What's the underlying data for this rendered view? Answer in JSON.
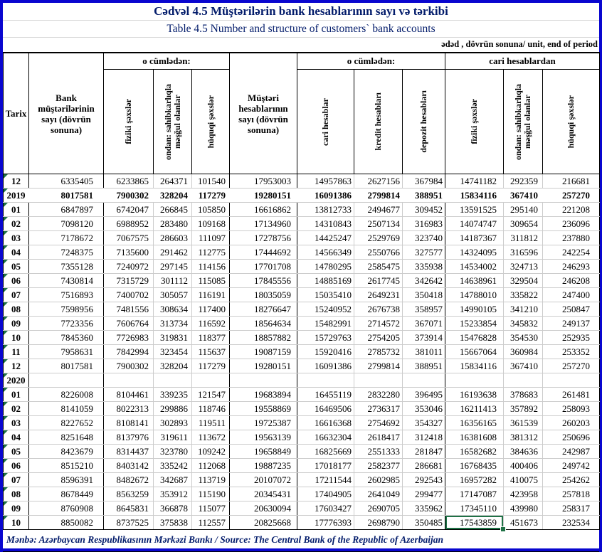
{
  "titles": {
    "az": "Cədvəl 4.5 Müştərilərin bank hesablarının sayı və tərkibi",
    "en": "Table 4.5 Number and structure of customers` bank accounts",
    "unit": "ədəd , dövrün sonuna/ unit, end of period",
    "source": "Mənbə: Azərbaycan Respublikasının Mərkəzi Bankı / Source: The Central Bank of the Republic of Azerbaijan"
  },
  "colors": {
    "frame_blue": "#0906CF",
    "title_navy": "#031C6B",
    "gridline_gray": "#CCCCCC",
    "selection_green": "#1F7246",
    "note_indicator_green": "#1E7145"
  },
  "table": {
    "corner": "Tarix",
    "groups": {
      "including_1": "o cümlədən:",
      "including_2": "o cümlədən:",
      "from_current": "cari hesablardan"
    },
    "columns": {
      "bank_customers": "Bank müştərilərinin sayı (dövrün sonuna)",
      "individuals_1": "fiziki şəxslər",
      "entrepreneurs_1": "ondan: sahibkarlıqla məşğul olanlar",
      "legal_entities_1": "hüquqi şəxslər",
      "customer_accounts": "Müştəri hesablarının sayı (dövrün sonuna)",
      "current_accounts": "cari hesablar",
      "credit_accounts": "kredit hesabları",
      "deposit_accounts": "depozit hesabları",
      "individuals_2": "fiziki şəxslər",
      "entrepreneurs_2": "ondan: sahibkarlıqla məşğul olanlar",
      "legal_entities_2": "hüquqi şəxslər"
    },
    "selection": {
      "row_index": 24,
      "col_index": 8,
      "value": "17543859"
    },
    "rows": [
      {
        "label": "12",
        "bold": false,
        "merged": false,
        "values": [
          "6335405",
          "6233865",
          "264371",
          "101540",
          "17953003",
          "14957863",
          "2627156",
          "367984",
          "14741182",
          "292359",
          "216681"
        ]
      },
      {
        "label": "2019",
        "bold": true,
        "merged": true,
        "values": [
          "8017581",
          "7900302",
          "328204",
          "117279",
          "19280151",
          "16091386",
          "2799814",
          "388951",
          "15834116",
          "367410",
          "257270"
        ]
      },
      {
        "label": "01",
        "bold": false,
        "merged": false,
        "values": [
          "6847897",
          "6742047",
          "266845",
          "105850",
          "16616862",
          "13812733",
          "2494677",
          "309452",
          "13591525",
          "295140",
          "221208"
        ]
      },
      {
        "label": "02",
        "bold": false,
        "merged": false,
        "values": [
          "7098120",
          "6988952",
          "283480",
          "109168",
          "17134960",
          "14310843",
          "2507134",
          "316983",
          "14074747",
          "309654",
          "236096"
        ]
      },
      {
        "label": "03",
        "bold": false,
        "merged": false,
        "values": [
          "7178672",
          "7067575",
          "286603",
          "111097",
          "17278756",
          "14425247",
          "2529769",
          "323740",
          "14187367",
          "311812",
          "237880"
        ]
      },
      {
        "label": "04",
        "bold": false,
        "merged": false,
        "values": [
          "7248375",
          "7135600",
          "291462",
          "112775",
          "17444692",
          "14566349",
          "2550766",
          "327577",
          "14324095",
          "316596",
          "242254"
        ]
      },
      {
        "label": "05",
        "bold": false,
        "merged": false,
        "values": [
          "7355128",
          "7240972",
          "297145",
          "114156",
          "17701708",
          "14780295",
          "2585475",
          "335938",
          "14534002",
          "324713",
          "246293"
        ]
      },
      {
        "label": "06",
        "bold": false,
        "merged": false,
        "values": [
          "7430814",
          "7315729",
          "301112",
          "115085",
          "17845556",
          "14885169",
          "2617745",
          "342642",
          "14638961",
          "329504",
          "246208"
        ]
      },
      {
        "label": "07",
        "bold": false,
        "merged": false,
        "values": [
          "7516893",
          "7400702",
          "305057",
          "116191",
          "18035059",
          "15035410",
          "2649231",
          "350418",
          "14788010",
          "335822",
          "247400"
        ]
      },
      {
        "label": "08",
        "bold": false,
        "merged": false,
        "values": [
          "7598956",
          "7481556",
          "308634",
          "117400",
          "18276647",
          "15240952",
          "2676738",
          "358957",
          "14990105",
          "341210",
          "250847"
        ]
      },
      {
        "label": "09",
        "bold": false,
        "merged": false,
        "values": [
          "7723356",
          "7606764",
          "313734",
          "116592",
          "18564634",
          "15482991",
          "2714572",
          "367071",
          "15233854",
          "345832",
          "249137"
        ]
      },
      {
        "label": "10",
        "bold": false,
        "merged": false,
        "values": [
          "7845360",
          "7726983",
          "319831",
          "118377",
          "18857882",
          "15729763",
          "2754205",
          "373914",
          "15476828",
          "354530",
          "252935"
        ]
      },
      {
        "label": "11",
        "bold": false,
        "merged": false,
        "values": [
          "7958631",
          "7842994",
          "323454",
          "115637",
          "19087159",
          "15920416",
          "2785732",
          "381011",
          "15667064",
          "360984",
          "253352"
        ]
      },
      {
        "label": "12",
        "bold": false,
        "merged": false,
        "values": [
          "8017581",
          "7900302",
          "328204",
          "117279",
          "19280151",
          "16091386",
          "2799814",
          "388951",
          "15834116",
          "367410",
          "257270"
        ]
      },
      {
        "label": "2020",
        "bold": true,
        "merged": false,
        "values": [
          "",
          "",
          "",
          "",
          "",
          "",
          "",
          "",
          "",
          "",
          ""
        ]
      },
      {
        "label": "01",
        "bold": false,
        "merged": false,
        "values": [
          "8226008",
          "8104461",
          "339235",
          "121547",
          "19683894",
          "16455119",
          "2832280",
          "396495",
          "16193638",
          "378683",
          "261481"
        ]
      },
      {
        "label": "02",
        "bold": false,
        "merged": false,
        "values": [
          "8141059",
          "8022313",
          "299886",
          "118746",
          "19558869",
          "16469506",
          "2736317",
          "353046",
          "16211413",
          "357892",
          "258093"
        ]
      },
      {
        "label": "03",
        "bold": false,
        "merged": false,
        "values": [
          "8227652",
          "8108141",
          "302893",
          "119511",
          "19725387",
          "16616368",
          "2754692",
          "354327",
          "16356165",
          "361539",
          "260203"
        ]
      },
      {
        "label": "04",
        "bold": false,
        "merged": false,
        "values": [
          "8251648",
          "8137976",
          "319611",
          "113672",
          "19563139",
          "16632304",
          "2618417",
          "312418",
          "16381608",
          "381312",
          "250696"
        ]
      },
      {
        "label": "05",
        "bold": false,
        "merged": false,
        "values": [
          "8423679",
          "8314437",
          "323780",
          "109242",
          "19658849",
          "16825669",
          "2551333",
          "281847",
          "16582682",
          "384636",
          "242987"
        ]
      },
      {
        "label": "06",
        "bold": false,
        "merged": false,
        "values": [
          "8515210",
          "8403142",
          "335242",
          "112068",
          "19887235",
          "17018177",
          "2582377",
          "286681",
          "16768435",
          "400406",
          "249742"
        ]
      },
      {
        "label": "07",
        "bold": false,
        "merged": false,
        "values": [
          "8596391",
          "8482672",
          "342687",
          "113719",
          "20107072",
          "17211544",
          "2602985",
          "292543",
          "16957282",
          "410075",
          "254262"
        ]
      },
      {
        "label": "08",
        "bold": false,
        "merged": false,
        "values": [
          "8678449",
          "8563259",
          "353912",
          "115190",
          "20345431",
          "17404905",
          "2641049",
          "299477",
          "17147087",
          "423958",
          "257818"
        ]
      },
      {
        "label": "09",
        "bold": false,
        "merged": false,
        "values": [
          "8760908",
          "8645831",
          "366878",
          "115077",
          "20630094",
          "17603427",
          "2690705",
          "335962",
          "17345110",
          "439980",
          "258317"
        ]
      },
      {
        "label": "10",
        "bold": false,
        "merged": false,
        "values": [
          "8850082",
          "8737525",
          "375838",
          "112557",
          "20825668",
          "17776393",
          "2698790",
          "350485",
          "17543859",
          "451673",
          "232534"
        ]
      }
    ]
  }
}
